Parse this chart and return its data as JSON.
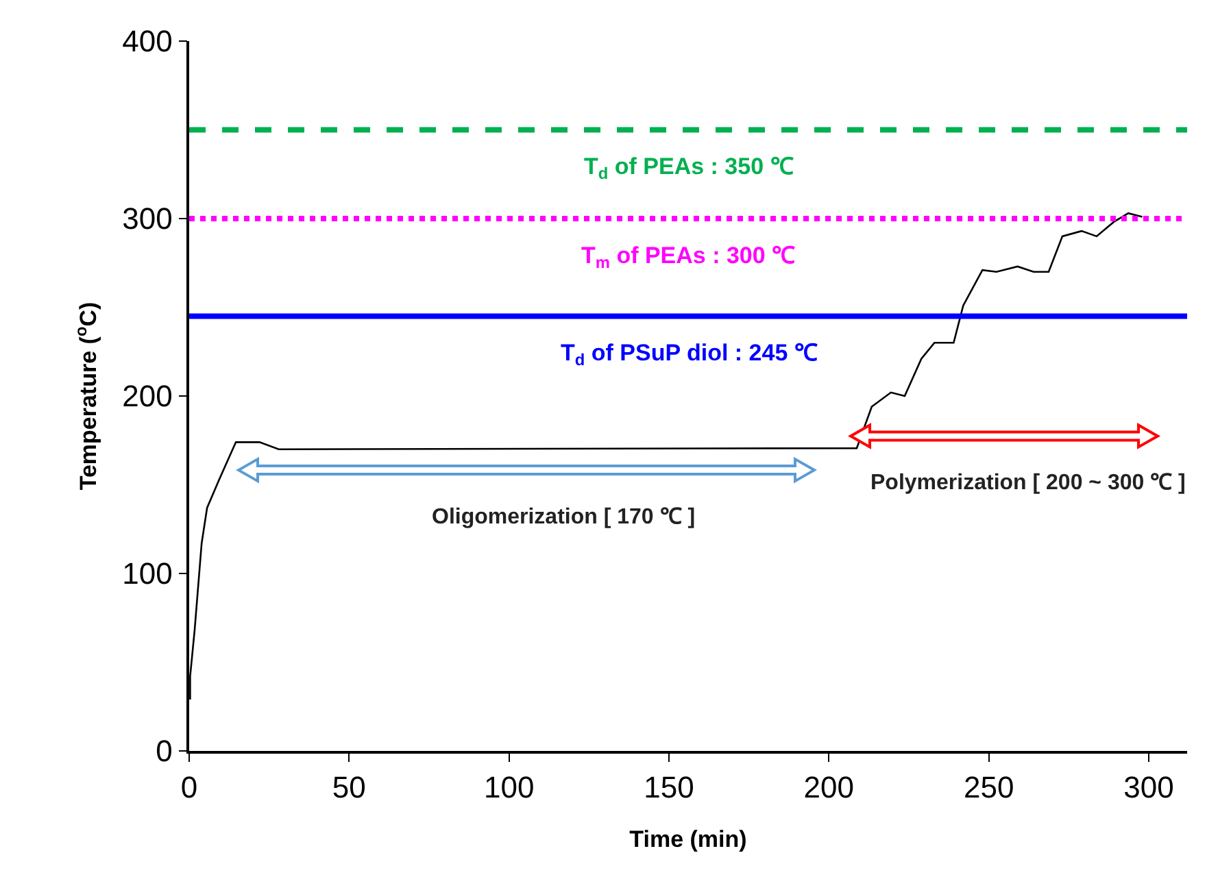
{
  "chart_data": {
    "type": "line",
    "xlabel": "Time (min)",
    "ylabel": "Temperature ($^{o}$C)",
    "xlim": [
      0,
      312
    ],
    "xticks": [
      0,
      50,
      100,
      150,
      200,
      250,
      300
    ],
    "ylim": [
      0,
      400
    ],
    "yticks": [
      0,
      100,
      200,
      300,
      400
    ],
    "grid": false,
    "marker": "none",
    "line_style": "solid",
    "series": [
      {
        "color": "#000000",
        "x": [
          0.3,
          0.3,
          1.7,
          3.9,
          5.6,
          9.4,
          14.6,
          22,
          28,
          208.7,
          213.4,
          219.4,
          223.7,
          228.9,
          233,
          239,
          242,
          248,
          252.4,
          259,
          264,
          268.7,
          273,
          279,
          283.7,
          289,
          293.6,
          298
        ],
        "values": [
          29,
          42,
          68,
          117,
          137,
          153,
          174,
          174,
          170,
          170.6,
          194,
          202,
          200,
          221,
          230,
          230,
          251,
          271,
          270,
          273,
          270,
          270,
          290,
          293,
          290,
          298,
          303,
          301
        ]
      }
    ],
    "ref_lines": [
      {
        "axis": "y",
        "value": 350,
        "label": "T$_{d}$ of PEAs : 350 ℃",
        "color": "#00b050",
        "line_style": "dashed"
      },
      {
        "axis": "y",
        "value": 300,
        "label": "T$_{m}$ of PEAs : 300 ℃",
        "color": "#ff00ff",
        "line_style": "dotted"
      },
      {
        "axis": "y",
        "value": 245,
        "label": "T$_{d}$ of PSuP diol : 245 ℃",
        "color": "#0000ff",
        "line_style": "solid"
      }
    ],
    "annotations": [
      "Oligomerization [ 170 ℃ ]",
      "Polymerization [ 200 ~ 300 ℃ ]"
    ]
  }
}
